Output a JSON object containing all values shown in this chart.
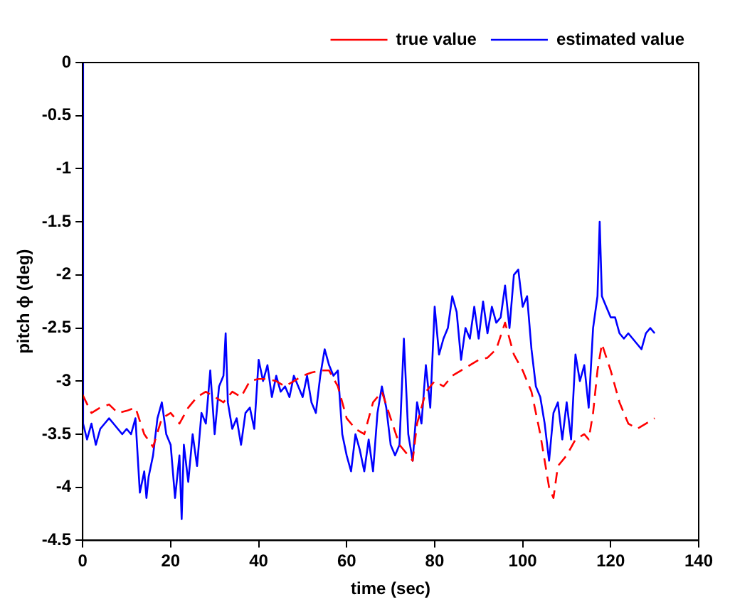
{
  "chart_data": {
    "type": "line",
    "xlabel": "time (sec)",
    "ylabel": "pitch ϕ (deg)",
    "xlim": [
      0,
      140
    ],
    "xticks": [
      0,
      20,
      40,
      60,
      80,
      100,
      120,
      140
    ],
    "ylim": [
      -4.5,
      0
    ],
    "yticks": [
      -4.5,
      -4,
      -3.5,
      -3,
      -2.5,
      -2,
      -1.5,
      -1,
      -0.5,
      0
    ],
    "grid": false,
    "legend": "top right",
    "marker": "none",
    "series": [
      {
        "name": "true value",
        "color": "#ff0000",
        "line_style": "dashed",
        "x": [
          0,
          2,
          4,
          6,
          8,
          10,
          12,
          14,
          16,
          18,
          20,
          22,
          24,
          26,
          28,
          30,
          32,
          34,
          36,
          38,
          40,
          42,
          44,
          46,
          48,
          50,
          52,
          54,
          56,
          58,
          60,
          62,
          64,
          66,
          68,
          70,
          72,
          74,
          75,
          76,
          78,
          80,
          82,
          84,
          86,
          88,
          90,
          92,
          94,
          96,
          97,
          98,
          100,
          102,
          104,
          106,
          107,
          108,
          110,
          112,
          114,
          115,
          116,
          117,
          118,
          120,
          122,
          124,
          126,
          128,
          130
        ],
        "values": [
          -3.13,
          -3.3,
          -3.25,
          -3.22,
          -3.3,
          -3.28,
          -3.25,
          -3.5,
          -3.62,
          -3.35,
          -3.3,
          -3.4,
          -3.25,
          -3.15,
          -3.1,
          -3.15,
          -3.2,
          -3.1,
          -3.15,
          -3.0,
          -2.98,
          -2.98,
          -3.0,
          -3.05,
          -3.0,
          -2.95,
          -2.92,
          -2.9,
          -2.9,
          -3.05,
          -3.35,
          -3.45,
          -3.5,
          -3.2,
          -3.1,
          -3.35,
          -3.6,
          -3.7,
          -3.75,
          -3.4,
          -3.1,
          -3.0,
          -3.05,
          -2.95,
          -2.9,
          -2.85,
          -2.8,
          -2.78,
          -2.7,
          -2.45,
          -2.6,
          -2.75,
          -2.9,
          -3.1,
          -3.5,
          -4.0,
          -4.1,
          -3.8,
          -3.7,
          -3.55,
          -3.5,
          -3.55,
          -3.3,
          -2.9,
          -2.65,
          -2.9,
          -3.2,
          -3.4,
          -3.45,
          -3.4,
          -3.35
        ]
      },
      {
        "name": "estimated value",
        "color": "#0000ff",
        "line_style": "solid",
        "x": [
          0,
          0.1,
          1,
          2,
          3,
          4,
          5,
          6,
          7,
          8,
          9,
          10,
          11,
          12,
          12.5,
          13,
          14,
          14.5,
          15,
          16,
          17,
          18,
          19,
          20,
          21,
          22,
          22.5,
          23,
          24,
          25,
          26,
          27,
          28,
          29,
          30,
          31,
          32,
          32.5,
          33,
          34,
          35,
          36,
          37,
          38,
          39,
          40,
          41,
          42,
          43,
          44,
          45,
          46,
          47,
          48,
          49,
          50,
          51,
          52,
          53,
          54,
          55,
          56,
          57,
          58,
          59,
          60,
          61,
          62,
          63,
          64,
          65,
          66,
          67,
          68,
          69,
          70,
          71,
          72,
          73,
          74,
          75,
          76,
          77,
          78,
          79,
          80,
          81,
          82,
          83,
          84,
          85,
          86,
          87,
          88,
          89,
          90,
          91,
          92,
          93,
          94,
          95,
          96,
          97,
          98,
          99,
          100,
          101,
          102,
          103,
          104,
          105,
          106,
          107,
          108,
          109,
          110,
          111,
          112,
          113,
          114,
          115,
          116,
          117,
          117.5,
          118,
          119,
          120,
          121,
          122,
          123,
          124,
          125,
          126,
          127,
          128,
          129,
          130
        ],
        "values": [
          0,
          -3.4,
          -3.55,
          -3.4,
          -3.6,
          -3.45,
          -3.4,
          -3.35,
          -3.4,
          -3.45,
          -3.5,
          -3.45,
          -3.5,
          -3.35,
          -3.7,
          -4.05,
          -3.85,
          -4.1,
          -3.9,
          -3.7,
          -3.35,
          -3.2,
          -3.5,
          -3.6,
          -4.1,
          -3.7,
          -4.3,
          -3.6,
          -3.95,
          -3.5,
          -3.8,
          -3.3,
          -3.4,
          -2.9,
          -3.5,
          -3.05,
          -2.95,
          -2.55,
          -3.2,
          -3.45,
          -3.35,
          -3.6,
          -3.3,
          -3.25,
          -3.45,
          -2.8,
          -3.0,
          -2.85,
          -3.15,
          -2.95,
          -3.1,
          -3.05,
          -3.15,
          -2.95,
          -3.05,
          -3.15,
          -2.95,
          -3.2,
          -3.3,
          -2.95,
          -2.7,
          -2.85,
          -2.95,
          -2.9,
          -3.5,
          -3.7,
          -3.85,
          -3.5,
          -3.65,
          -3.85,
          -3.55,
          -3.85,
          -3.3,
          -3.05,
          -3.25,
          -3.6,
          -3.7,
          -3.6,
          -2.6,
          -3.5,
          -3.75,
          -3.2,
          -3.4,
          -2.85,
          -3.25,
          -2.3,
          -2.75,
          -2.6,
          -2.5,
          -2.2,
          -2.35,
          -2.8,
          -2.5,
          -2.6,
          -2.3,
          -2.6,
          -2.25,
          -2.55,
          -2.3,
          -2.45,
          -2.4,
          -2.1,
          -2.5,
          -2.0,
          -1.95,
          -2.3,
          -2.2,
          -2.7,
          -3.05,
          -3.15,
          -3.4,
          -3.75,
          -3.3,
          -3.2,
          -3.55,
          -3.2,
          -3.55,
          -2.75,
          -3.0,
          -2.85,
          -3.25,
          -2.5,
          -2.2,
          -1.5,
          -2.2,
          -2.3,
          -2.4,
          -2.4,
          -2.55,
          -2.6,
          -2.55,
          -2.6,
          -2.65,
          -2.7,
          -2.55,
          -2.5,
          -2.55
        ]
      }
    ]
  }
}
